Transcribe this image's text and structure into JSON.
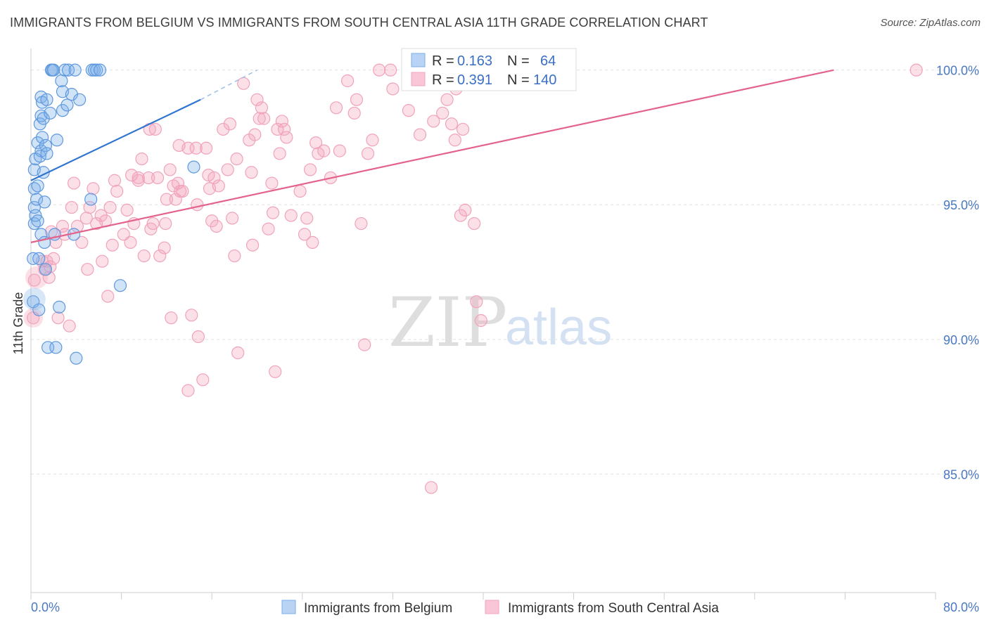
{
  "title": "IMMIGRANTS FROM BELGIUM VS IMMIGRANTS FROM SOUTH CENTRAL ASIA 11TH GRADE CORRELATION CHART",
  "source": "Source: ZipAtlas.com",
  "watermark": {
    "zip": "ZIP",
    "atlas": "atlas"
  },
  "colors": {
    "blue": "#7aaee8",
    "blue_line": "#2f74d0",
    "pink": "#f3a6bd",
    "pink_line": "#e4628c",
    "axis_label": "#4a78c2",
    "grid": "#e2e2e2"
  },
  "legend_stats": [
    {
      "r_label": "R =",
      "r_value": "0.163",
      "n_label": "N =",
      "n_value": "64"
    },
    {
      "r_label": "R =",
      "r_value": "0.391",
      "n_label": "N =",
      "n_value": "140"
    }
  ],
  "chart_data": {
    "type": "scatter",
    "title": "IMMIGRANTS FROM BELGIUM VS IMMIGRANTS FROM SOUTH CENTRAL ASIA 11TH GRADE CORRELATION CHART",
    "xlabel": "",
    "ylabel": "11th Grade",
    "xlim": [
      0,
      80
    ],
    "ylim": [
      80.6,
      100.8
    ],
    "x_tick_labels": [
      "0.0%",
      "80.0%"
    ],
    "y_ticks": [
      85,
      90,
      95,
      100
    ],
    "y_tick_labels": [
      "85.0%",
      "90.0%",
      "95.0%",
      "100.0%"
    ],
    "legend_position": "bottom",
    "series": [
      {
        "name": "Immigrants from Belgium",
        "color": "#7aaee8",
        "trend": {
          "x": [
            0,
            15
          ],
          "y": [
            95.9,
            98.9
          ],
          "dashed_to": [
            20,
            100.0
          ]
        },
        "points": [
          [
            0.2,
            93.0
          ],
          [
            0.2,
            91.4
          ],
          [
            0.3,
            96.3
          ],
          [
            0.3,
            95.6
          ],
          [
            0.3,
            94.9
          ],
          [
            0.3,
            94.3
          ],
          [
            0.4,
            96.7
          ],
          [
            0.4,
            94.6
          ],
          [
            0.5,
            95.2
          ],
          [
            0.6,
            97.3
          ],
          [
            0.6,
            95.7
          ],
          [
            0.6,
            94.4
          ],
          [
            0.7,
            93.0
          ],
          [
            0.7,
            91.1
          ],
          [
            0.8,
            98.0
          ],
          [
            0.8,
            96.8
          ],
          [
            0.9,
            99.0
          ],
          [
            0.9,
            98.3
          ],
          [
            0.9,
            97.0
          ],
          [
            0.9,
            93.9
          ],
          [
            1.0,
            98.8
          ],
          [
            1.0,
            97.5
          ],
          [
            1.1,
            98.2
          ],
          [
            1.1,
            96.2
          ],
          [
            1.2,
            95.1
          ],
          [
            1.2,
            93.6
          ],
          [
            1.3,
            97.2
          ],
          [
            1.3,
            92.6
          ],
          [
            1.4,
            98.9
          ],
          [
            1.4,
            96.9
          ],
          [
            1.5,
            89.7
          ],
          [
            1.7,
            98.4
          ],
          [
            1.8,
            100.0
          ],
          [
            1.9,
            100.0
          ],
          [
            2.0,
            100.0
          ],
          [
            2.1,
            93.9
          ],
          [
            2.2,
            89.7
          ],
          [
            2.3,
            97.4
          ],
          [
            2.5,
            91.2
          ],
          [
            2.7,
            99.6
          ],
          [
            2.8,
            99.2
          ],
          [
            2.8,
            98.5
          ],
          [
            3.0,
            100.0
          ],
          [
            3.2,
            98.7
          ],
          [
            3.3,
            100.0
          ],
          [
            3.6,
            99.1
          ],
          [
            3.8,
            93.9
          ],
          [
            3.9,
            100.0
          ],
          [
            4.0,
            89.3
          ],
          [
            4.3,
            98.9
          ],
          [
            5.3,
            95.2
          ],
          [
            5.4,
            100.0
          ],
          [
            5.6,
            100.0
          ],
          [
            5.8,
            100.0
          ],
          [
            6.1,
            100.0
          ],
          [
            7.9,
            92.0
          ],
          [
            14.4,
            96.4
          ]
        ]
      },
      {
        "name": "Immigrants from South Central Asia",
        "color": "#f3a6bd",
        "trend": {
          "x": [
            0,
            71
          ],
          "y": [
            93.6,
            100.0
          ]
        },
        "points": [
          [
            0.2,
            90.8
          ],
          [
            0.3,
            92.2
          ],
          [
            1.0,
            92.9
          ],
          [
            1.2,
            92.6
          ],
          [
            1.4,
            92.9
          ],
          [
            1.6,
            92.3
          ],
          [
            1.7,
            92.7
          ],
          [
            1.8,
            94.0
          ],
          [
            2.0,
            93.0
          ],
          [
            2.2,
            93.6
          ],
          [
            2.4,
            90.8
          ],
          [
            2.8,
            94.2
          ],
          [
            3.0,
            93.9
          ],
          [
            3.4,
            90.5
          ],
          [
            3.6,
            94.9
          ],
          [
            3.8,
            95.8
          ],
          [
            4.1,
            94.2
          ],
          [
            4.5,
            93.6
          ],
          [
            4.9,
            94.5
          ],
          [
            5.0,
            92.6
          ],
          [
            5.2,
            94.9
          ],
          [
            5.5,
            95.6
          ],
          [
            5.8,
            94.3
          ],
          [
            6.2,
            94.6
          ],
          [
            6.3,
            92.9
          ],
          [
            6.6,
            94.4
          ],
          [
            6.8,
            91.6
          ],
          [
            7.0,
            94.9
          ],
          [
            7.2,
            93.5
          ],
          [
            7.4,
            95.9
          ],
          [
            7.6,
            95.5
          ],
          [
            8.2,
            93.9
          ],
          [
            8.5,
            94.8
          ],
          [
            8.8,
            93.6
          ],
          [
            8.9,
            96.1
          ],
          [
            9.1,
            94.3
          ],
          [
            9.5,
            95.9
          ],
          [
            9.5,
            96.0
          ],
          [
            9.8,
            96.7
          ],
          [
            10.0,
            93.1
          ],
          [
            10.4,
            96.0
          ],
          [
            10.5,
            97.8
          ],
          [
            10.6,
            94.1
          ],
          [
            10.8,
            94.3
          ],
          [
            11.0,
            97.8
          ],
          [
            11.2,
            96.0
          ],
          [
            11.4,
            93.1
          ],
          [
            11.8,
            93.4
          ],
          [
            11.9,
            94.3
          ],
          [
            12.0,
            95.2
          ],
          [
            12.3,
            96.3
          ],
          [
            12.4,
            90.8
          ],
          [
            12.6,
            95.7
          ],
          [
            12.8,
            95.2
          ],
          [
            13.0,
            95.8
          ],
          [
            13.1,
            97.2
          ],
          [
            13.2,
            95.5
          ],
          [
            13.4,
            95.5
          ],
          [
            13.9,
            97.1
          ],
          [
            13.9,
            88.1
          ],
          [
            14.2,
            90.9
          ],
          [
            14.6,
            97.1
          ],
          [
            14.7,
            95.0
          ],
          [
            14.8,
            90.1
          ],
          [
            15.2,
            88.5
          ],
          [
            15.5,
            97.1
          ],
          [
            15.7,
            96.1
          ],
          [
            15.8,
            95.6
          ],
          [
            16.0,
            94.4
          ],
          [
            16.2,
            96.0
          ],
          [
            16.4,
            94.2
          ],
          [
            16.6,
            95.7
          ],
          [
            17.0,
            97.8
          ],
          [
            17.4,
            96.3
          ],
          [
            17.6,
            98.0
          ],
          [
            17.8,
            94.5
          ],
          [
            18.0,
            93.1
          ],
          [
            18.2,
            96.7
          ],
          [
            18.3,
            89.5
          ],
          [
            18.8,
            99.5
          ],
          [
            19.3,
            97.4
          ],
          [
            19.5,
            96.2
          ],
          [
            19.6,
            93.5
          ],
          [
            19.8,
            97.6
          ],
          [
            20.0,
            98.9
          ],
          [
            20.2,
            98.2
          ],
          [
            20.4,
            98.6
          ],
          [
            20.6,
            98.2
          ],
          [
            21.0,
            94.1
          ],
          [
            21.3,
            95.8
          ],
          [
            21.4,
            94.7
          ],
          [
            21.6,
            88.8
          ],
          [
            21.8,
            97.8
          ],
          [
            22.0,
            96.9
          ],
          [
            22.2,
            98.1
          ],
          [
            22.4,
            97.8
          ],
          [
            22.6,
            97.5
          ],
          [
            23.0,
            94.6
          ],
          [
            23.8,
            95.5
          ],
          [
            24.2,
            93.9
          ],
          [
            24.4,
            94.5
          ],
          [
            24.7,
            96.3
          ],
          [
            24.9,
            93.6
          ],
          [
            25.2,
            97.3
          ],
          [
            25.4,
            96.9
          ],
          [
            25.9,
            97.0
          ],
          [
            26.5,
            96.0
          ],
          [
            27.0,
            98.6
          ],
          [
            27.3,
            97.0
          ],
          [
            28.0,
            99.6
          ],
          [
            28.6,
            98.4
          ],
          [
            28.8,
            98.9
          ],
          [
            29.2,
            94.3
          ],
          [
            29.5,
            89.8
          ],
          [
            29.8,
            96.9
          ],
          [
            30.2,
            97.4
          ],
          [
            30.8,
            100.0
          ],
          [
            31.8,
            100.0
          ],
          [
            32.0,
            99.3
          ],
          [
            33.4,
            98.5
          ],
          [
            33.8,
            99.8
          ],
          [
            34.4,
            97.6
          ],
          [
            35.0,
            99.8
          ],
          [
            35.6,
            98.1
          ],
          [
            36.4,
            98.4
          ],
          [
            36.8,
            98.9
          ],
          [
            37.2,
            98.0
          ],
          [
            37.5,
            97.4
          ],
          [
            37.6,
            99.3
          ],
          [
            38.0,
            94.6
          ],
          [
            38.2,
            97.8
          ],
          [
            38.4,
            94.8
          ],
          [
            39.2,
            94.3
          ],
          [
            39.4,
            91.4
          ],
          [
            39.8,
            90.7
          ],
          [
            35.4,
            84.5
          ],
          [
            78.3,
            100.0
          ]
        ]
      }
    ]
  },
  "bottom_legend": [
    {
      "label": "Immigrants from Belgium"
    },
    {
      "label": "Immigrants from South Central Asia"
    }
  ]
}
